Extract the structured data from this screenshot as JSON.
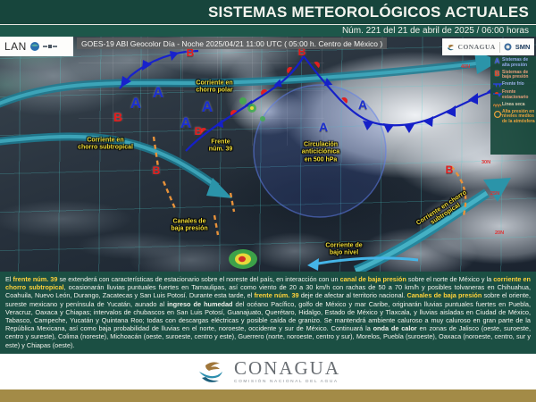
{
  "palette": {
    "header_green": "#17453c",
    "subheader_green": "#1d574a",
    "discussion_green": "#1b4f43",
    "highlight_yellow": "#ffd23a",
    "annotation_yellow": "#f2de38",
    "high_pressure_blue": "#1b2fd0",
    "low_pressure_red": "#e51b1b",
    "jet_stream_teal": "#1d7d93",
    "low_channel_orange": "#e8923a",
    "gold_bar": "#a38b47"
  },
  "header": {
    "title": "SISTEMAS METEOROLÓGICOS ACTUALES",
    "subtitle": "Núm. 221 del 21 de abril de 2025 / 06:00 horas"
  },
  "map": {
    "watermark": "LAN",
    "satellite_caption": "GOES-19 ABI Geocolor Día - Noche 2025/04/21 11:00 UTC ( 05:00 h. Centro de México )",
    "logo_conagua": "CONAGUA",
    "logo_smn": "SMN",
    "legend": {
      "items": [
        {
          "symbol": "A",
          "label": "Sistemas de\nalta presión"
        },
        {
          "symbol": "B",
          "label": "Sistemas de\nbaja presión"
        },
        {
          "symbol": "cold-front",
          "label": "Frente frío"
        },
        {
          "symbol": "stationary-front",
          "label": "Frente\nestacionario"
        },
        {
          "symbol": "dry-line",
          "label": "Línea seca"
        },
        {
          "symbol": "mid-level-high",
          "label": "Alta presión en\nniveles medios\nde la atmósfera"
        }
      ]
    },
    "annotations": [
      {
        "text": "Corriente en\nchorro polar"
      },
      {
        "text": "Corriente en\nchorro subtropical"
      },
      {
        "text": "Frente\nnúm. 39"
      },
      {
        "text": "Circulación\nanticiclónica\nen 500 hPa"
      },
      {
        "text": "Canales de\nbaja presión"
      },
      {
        "text": "Corriente de\nbajo nivel"
      },
      {
        "text": "Corriente en chorro subtropical"
      }
    ],
    "high_letters": [
      "A",
      "A",
      "A",
      "A",
      "A",
      "A"
    ],
    "low_letters": [
      "B",
      "B",
      "B",
      "B",
      "B",
      "B"
    ],
    "graticule_labels": [
      "40N",
      "30N",
      "25N",
      "20N"
    ]
  },
  "discussion": {
    "segments": [
      {
        "t": "El ",
        "s": "n"
      },
      {
        "t": "frente núm. 39",
        "s": "h"
      },
      {
        "t": " se extenderá con características de estacionario sobre el noreste del país, en interacción con un ",
        "s": "n"
      },
      {
        "t": "canal de baja presión",
        "s": "h"
      },
      {
        "t": " sobre el norte de México y la ",
        "s": "n"
      },
      {
        "t": "corriente en chorro subtropical",
        "s": "h"
      },
      {
        "t": ", ocasionarán lluvias puntuales fuertes en Tamaulipas, así como viento de 20 a 30 km/h con rachas de 50 a 70 km/h y posibles tolvaneras en Chihuahua, Coahuila, Nuevo León, Durango, Zacatecas y San Luis Potosí. Durante esta tarde, el ",
        "s": "n"
      },
      {
        "t": "frente núm. 39",
        "s": "h"
      },
      {
        "t": " deje de afectar al territorio nacional. ",
        "s": "n"
      },
      {
        "t": "Canales de baja presión",
        "s": "h"
      },
      {
        "t": " sobre el oriente, sureste mexicano y península de Yucatán, aunado al ",
        "s": "n"
      },
      {
        "t": "ingreso de humedad",
        "s": "b"
      },
      {
        "t": " del océano Pacífico, golfo de México y mar Caribe, originarán lluvias puntuales fuertes en Puebla, Veracruz, Oaxaca y Chiapas; intervalos de chubascos en San Luis Potosí, Guanajuato, Querétaro, Hidalgo, Estado de México y Tlaxcala, y lluvias aisladas en Ciudad de México, Tabasco, Campeche, Yucatán y Quintana Roo; todas con descargas eléctricas y posible caída de granizo. Se mantendrá ambiente caluroso a muy caluroso en gran parte de la República Mexicana, así como baja probabilidad de lluvias en el norte, noroeste, occidente y sur de México. Continuará la ",
        "s": "n"
      },
      {
        "t": "onda de calor",
        "s": "b"
      },
      {
        "t": " en zonas de Jalisco (oeste, suroeste, centro y sureste), Colima (noreste), Michoacán (oeste, suroeste, centro y este), Guerrero (norte, noroeste, centro y sur), Morelos, Puebla (suroeste), Oaxaca (noroeste, centro, sur y este) y Chiapas (oeste).",
        "s": "n"
      }
    ]
  },
  "footer": {
    "logo": "CONAGUA",
    "logo_subtitle": "COMISIÓN NACIONAL DEL AGUA"
  }
}
